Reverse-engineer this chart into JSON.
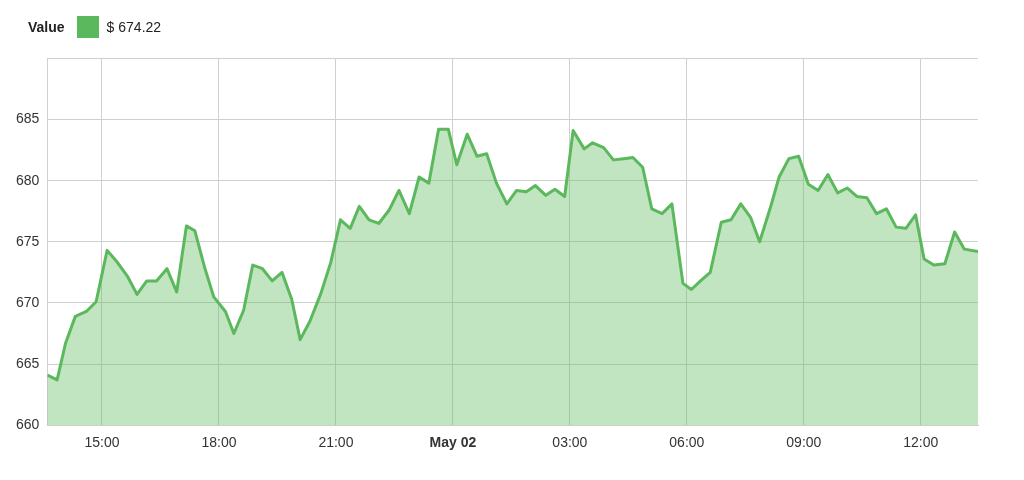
{
  "chart_data": {
    "type": "area",
    "legend_title": "Value",
    "legend": "top left",
    "grid": true,
    "marker": "none",
    "xlim": [
      "--05-01T13:36",
      "--05-02T13:28"
    ],
    "xticks": [
      {
        "value": "--05-01T15:00",
        "label": "15:00"
      },
      {
        "value": "--05-01T18:00",
        "label": "18:00"
      },
      {
        "value": "--05-01T21:00",
        "label": "21:00"
      },
      {
        "value": "--05-02T00:00",
        "label": "May 02"
      },
      {
        "value": "--05-02T03:00",
        "label": "03:00"
      },
      {
        "value": "--05-02T06:00",
        "label": "06:00"
      },
      {
        "value": "--05-02T09:00",
        "label": "09:00"
      },
      {
        "value": "--05-02T12:00",
        "label": "12:00"
      }
    ],
    "ylim": [
      660,
      690
    ],
    "yticks": [
      660,
      665,
      670,
      675,
      680,
      685,
      {
        "value": 690,
        "label": null
      }
    ],
    "series": [
      {
        "name": "$ 674.22",
        "color": "#5cb85c",
        "x": [
          "--05-01T13:36",
          "--05-01T13:51",
          "--05-01T14:04",
          "--05-01T14:19",
          "--05-01T14:36",
          "--05-01T14:51",
          "--05-01T15:08",
          "--05-01T15:24",
          "--05-01T15:39",
          "--05-01T15:54",
          "--05-01T16:09",
          "--05-01T16:24",
          "--05-01T16:40",
          "--05-01T16:55",
          "--05-01T17:10",
          "--05-01T17:23",
          "--05-01T17:38",
          "--05-01T17:52",
          "--05-01T18:10",
          "--05-01T18:23",
          "--05-01T18:38",
          "--05-01T18:52",
          "--05-01T19:07",
          "--05-01T19:22",
          "--05-01T19:37",
          "--05-01T19:52",
          "--05-01T20:05",
          "--05-01T20:20",
          "--05-01T20:37",
          "--05-01T20:52",
          "--05-01T21:07",
          "--05-01T21:22",
          "--05-01T21:36",
          "--05-01T21:51",
          "--05-01T22:06",
          "--05-01T22:22",
          "--05-01T22:37",
          "--05-01T22:53",
          "--05-01T23:08",
          "--05-01T23:23",
          "--05-01T23:38",
          "--05-01T23:53",
          "--05-02T00:06",
          "--05-02T00:22",
          "--05-02T00:37",
          "--05-02T00:52",
          "--05-02T01:07",
          "--05-02T01:23",
          "--05-02T01:38",
          "--05-02T01:53",
          "--05-02T02:07",
          "--05-02T02:23",
          "--05-02T02:37",
          "--05-02T02:52",
          "--05-02T03:05",
          "--05-02T03:22",
          "--05-02T03:35",
          "--05-02T03:52",
          "--05-02T04:07",
          "--05-02T04:23",
          "--05-02T04:37",
          "--05-02T04:52",
          "--05-02T05:06",
          "--05-02T05:22",
          "--05-02T05:37",
          "--05-02T05:54",
          "--05-02T06:07",
          "--05-02T06:21",
          "--05-02T06:36",
          "--05-02T06:53",
          "--05-02T07:08",
          "--05-02T07:23",
          "--05-02T07:38",
          "--05-02T07:52",
          "--05-02T08:08",
          "--05-02T08:22",
          "--05-02T08:37",
          "--05-02T08:52",
          "--05-02T09:07",
          "--05-02T09:22",
          "--05-02T09:37",
          "--05-02T09:52",
          "--05-02T10:07",
          "--05-02T10:22",
          "--05-02T10:37",
          "--05-02T10:52",
          "--05-02T11:07",
          "--05-02T11:22",
          "--05-02T11:37",
          "--05-02T11:52",
          "--05-02T12:05",
          "--05-02T12:20",
          "--05-02T12:37",
          "--05-02T12:52",
          "--05-02T13:07",
          "--05-02T13:28"
        ],
        "values": [
          664.1,
          663.7,
          666.7,
          668.9,
          669.3,
          670.1,
          674.3,
          673.3,
          672.2,
          670.7,
          671.8,
          671.8,
          672.8,
          670.9,
          676.3,
          675.9,
          672.9,
          670.5,
          669.3,
          667.5,
          669.4,
          673.1,
          672.8,
          671.8,
          672.5,
          670.3,
          667.0,
          668.5,
          670.8,
          673.3,
          676.8,
          676.1,
          677.9,
          676.8,
          676.5,
          677.6,
          679.2,
          677.3,
          680.3,
          679.8,
          684.2,
          684.2,
          681.3,
          683.8,
          682.0,
          682.2,
          679.8,
          678.1,
          679.2,
          679.1,
          679.6,
          678.8,
          679.3,
          678.7,
          684.1,
          682.6,
          683.1,
          682.7,
          681.7,
          681.8,
          681.9,
          681.1,
          677.7,
          677.3,
          678.1,
          671.6,
          671.1,
          671.8,
          672.5,
          676.6,
          676.8,
          678.1,
          677.0,
          675.0,
          677.7,
          680.3,
          681.8,
          682.0,
          679.7,
          679.2,
          680.5,
          679.0,
          679.4,
          678.7,
          678.6,
          677.3,
          677.7,
          676.2,
          676.1,
          677.2,
          673.6,
          673.1,
          673.2,
          675.8,
          674.4,
          674.2
        ]
      }
    ]
  }
}
